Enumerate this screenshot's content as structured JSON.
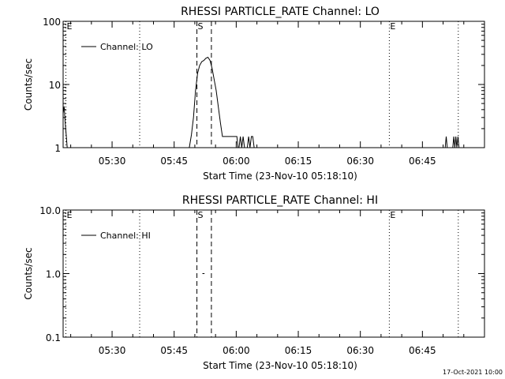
{
  "footer_timestamp": "17-Oct-2021 10:00",
  "chart_data": [
    {
      "type": "line",
      "title": "RHESSI PARTICLE_RATE Channel: LO",
      "xlabel": "Start Time (23-Nov-10 05:18:10)",
      "ylabel": "Counts/sec",
      "yscale": "log",
      "ylim": [
        1,
        100
      ],
      "xlim": [
        "05:18:10",
        "07:00:00"
      ],
      "x_ticks": [
        "05:30",
        "05:45",
        "06:00",
        "06:15",
        "06:30",
        "06:45"
      ],
      "y_ticks": [
        "1",
        "10",
        "100"
      ],
      "legend": {
        "label": "Channel: LO",
        "placement": "top-left"
      },
      "markers": [
        {
          "label": "E",
          "time": "05:18:50",
          "style": "dotted"
        },
        {
          "label": "",
          "time": "05:36:40",
          "style": "dotted"
        },
        {
          "label": "S",
          "time": "05:50:30",
          "style": "dashed"
        },
        {
          "label": "",
          "time": "05:54:00",
          "style": "dashed"
        },
        {
          "label": "E",
          "time": "06:37:00",
          "style": "dotted"
        },
        {
          "label": "",
          "time": "06:53:40",
          "style": "dotted"
        }
      ],
      "series": [
        {
          "name": "Channel: LO",
          "segments": [
            [
              [
                "05:18:10",
                3.5
              ],
              [
                "05:18:25",
                4.5
              ],
              [
                "05:18:40",
                2.5
              ],
              [
                "05:18:55",
                1.6
              ],
              [
                "05:19:10",
                1.0
              ]
            ],
            [
              [
                "05:48:40",
                1.0
              ],
              [
                "05:49:10",
                1.6
              ],
              [
                "05:49:40",
                3.0
              ],
              [
                "05:50:10",
                8.0
              ],
              [
                "05:50:40",
                15.0
              ],
              [
                "05:51:10",
                20.0
              ],
              [
                "05:51:40",
                23.0
              ],
              [
                "05:52:10",
                24.0
              ],
              [
                "05:52:40",
                26.0
              ],
              [
                "05:53:10",
                27.0
              ],
              [
                "05:53:40",
                24.0
              ],
              [
                "05:54:10",
                18.0
              ],
              [
                "05:54:40",
                12.0
              ],
              [
                "05:55:10",
                8.0
              ],
              [
                "05:55:40",
                4.5
              ],
              [
                "05:56:10",
                2.5
              ],
              [
                "05:56:40",
                1.5
              ],
              [
                "05:57:10",
                1.5
              ],
              [
                "05:58:10",
                1.5
              ],
              [
                "06:00:10",
                1.5
              ],
              [
                "06:00:25",
                1.0
              ]
            ],
            [
              [
                "06:00:40",
                1.0
              ],
              [
                "06:01:00",
                1.5
              ],
              [
                "06:01:20",
                1.0
              ],
              [
                "06:01:40",
                1.5
              ],
              [
                "06:02:00",
                1.0
              ]
            ],
            [
              [
                "06:02:40",
                1.0
              ],
              [
                "06:03:00",
                1.5
              ],
              [
                "06:03:20",
                1.0
              ],
              [
                "06:03:40",
                1.5
              ],
              [
                "06:04:00",
                1.5
              ],
              [
                "06:04:20",
                1.0
              ]
            ],
            [
              [
                "06:50:30",
                1.0
              ],
              [
                "06:50:45",
                1.5
              ],
              [
                "06:51:00",
                1.0
              ]
            ],
            [
              [
                "06:52:20",
                1.0
              ],
              [
                "06:52:35",
                1.5
              ],
              [
                "06:52:50",
                1.0
              ],
              [
                "06:53:05",
                1.5
              ],
              [
                "06:53:20",
                1.0
              ],
              [
                "06:53:35",
                1.5
              ],
              [
                "06:53:50",
                1.0
              ]
            ]
          ]
        }
      ]
    },
    {
      "type": "line",
      "title": "RHESSI PARTICLE_RATE Channel: HI",
      "xlabel": "Start Time (23-Nov-10 05:18:10)",
      "ylabel": "Counts/sec",
      "yscale": "log",
      "ylim": [
        0.1,
        10
      ],
      "xlim": [
        "05:18:10",
        "07:00:00"
      ],
      "x_ticks": [
        "05:30",
        "05:45",
        "06:00",
        "06:15",
        "06:30",
        "06:45"
      ],
      "y_ticks": [
        "0.1",
        "1.0",
        "10.0"
      ],
      "legend": {
        "label": "Channel: HI",
        "placement": "top-left"
      },
      "markers": [
        {
          "label": "E",
          "time": "05:18:50",
          "style": "dotted"
        },
        {
          "label": "",
          "time": "05:36:40",
          "style": "dotted"
        },
        {
          "label": "S",
          "time": "05:50:30",
          "style": "dashed"
        },
        {
          "label": "",
          "time": "05:54:00",
          "style": "dashed"
        },
        {
          "label": "E",
          "time": "06:37:00",
          "style": "dotted"
        },
        {
          "label": "",
          "time": "06:53:40",
          "style": "dotted"
        }
      ],
      "series": [
        {
          "name": "Channel: HI",
          "segments": [
            [
              [
                "05:51:50",
                1.0
              ],
              [
                "05:52:20",
                1.0
              ]
            ]
          ]
        }
      ]
    }
  ]
}
